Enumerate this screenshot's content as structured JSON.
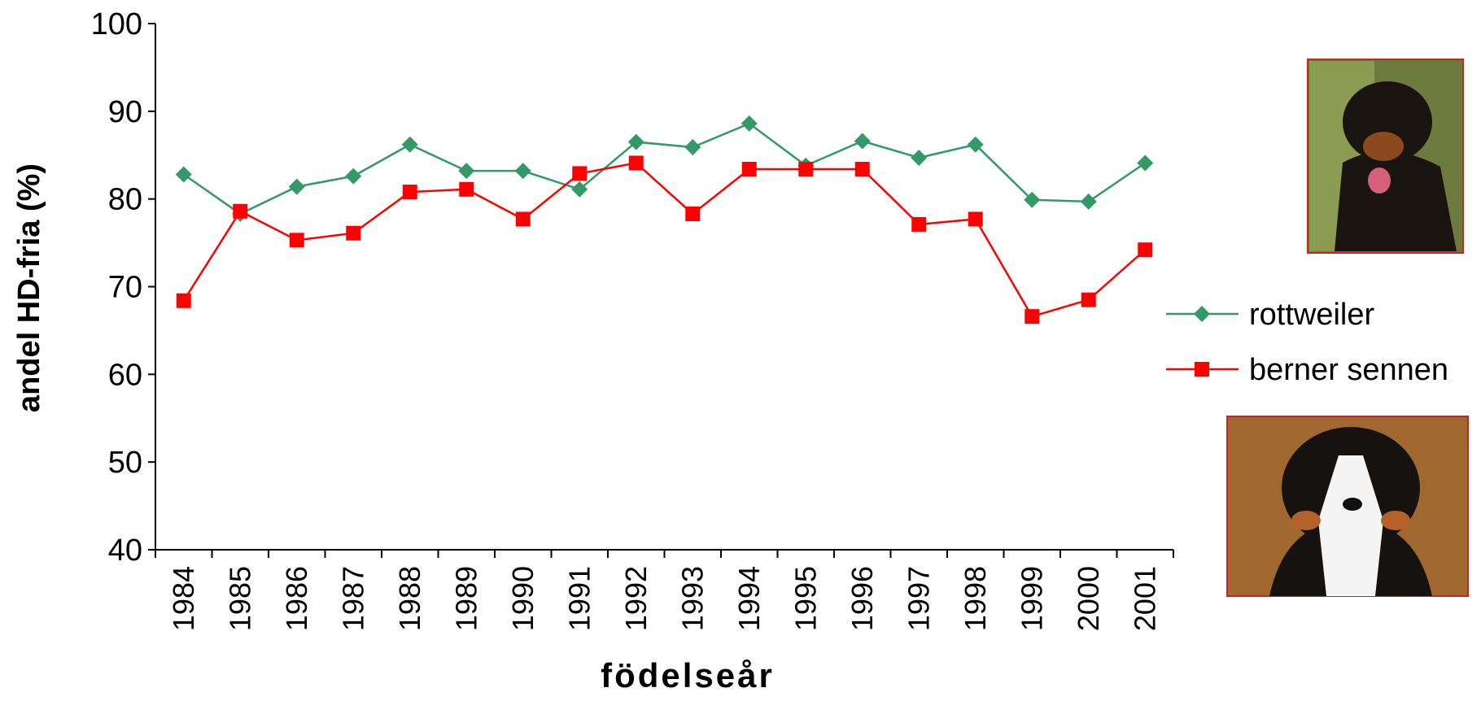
{
  "chart_data": {
    "type": "line",
    "x_label": "födelseår",
    "y_label": "andel HD-fria (%)",
    "categories": [
      "1984",
      "1985",
      "1986",
      "1987",
      "1988",
      "1989",
      "1990",
      "1991",
      "1992",
      "1993",
      "1994",
      "1995",
      "1996",
      "1997",
      "1998",
      "1999",
      "2000",
      "2001"
    ],
    "series": [
      {
        "name": "rottweiler",
        "color": "#339966",
        "marker": "diamond",
        "values": [
          82.8,
          78.3,
          81.4,
          82.6,
          86.2,
          83.2,
          83.2,
          81.1,
          86.5,
          85.9,
          88.6,
          83.8,
          86.6,
          84.7,
          86.2,
          79.9,
          79.7,
          84.1
        ]
      },
      {
        "name": "berner sennen",
        "color": "#ff0000",
        "marker": "square",
        "values": [
          68.4,
          78.6,
          75.3,
          76.1,
          80.8,
          81.1,
          77.7,
          82.9,
          84.1,
          78.3,
          83.4,
          83.4,
          83.4,
          77.1,
          77.7,
          66.6,
          68.5,
          74.2
        ]
      }
    ],
    "ylim": [
      40,
      100
    ],
    "yticks": [
      40,
      50,
      60,
      70,
      80,
      90,
      100
    ],
    "grid": false,
    "legend": "right"
  }
}
